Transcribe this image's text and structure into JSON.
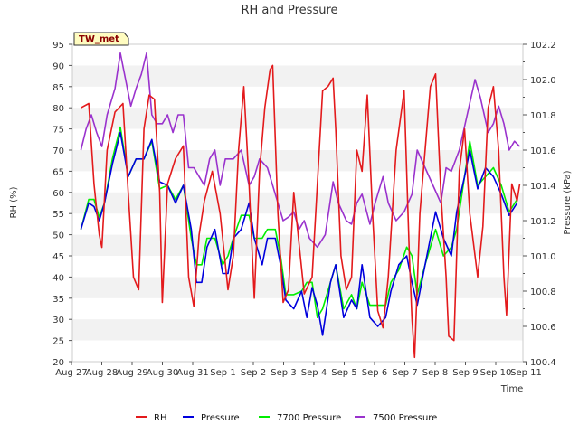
{
  "chart_data": {
    "type": "line",
    "title": "RH and Pressure",
    "xlabel": "Time",
    "ylabel_left": "RH (%)",
    "ylabel_right": "Pressure (kPa)",
    "station_badge": "TW_met",
    "x_ticks": [
      "Aug 27",
      "Aug 28",
      "Aug 29",
      "Aug 30",
      "Aug 31",
      "Sep 1",
      "Sep 2",
      "Sep 3",
      "Sep 4",
      "Sep 5",
      "Sep 6",
      "Sep 7",
      "Sep 8",
      "Sep 9",
      "Sep 10",
      "Sep 11"
    ],
    "x_range_days": [
      0,
      15
    ],
    "y_left_ticks": [
      "20",
      "25",
      "30",
      "35",
      "40",
      "45",
      "50",
      "55",
      "60",
      "65",
      "70",
      "75",
      "80",
      "85",
      "90",
      "95"
    ],
    "y_left_range": [
      20,
      95
    ],
    "y_right_ticks": [
      "100.4",
      "100.6",
      "100.8",
      "101.0",
      "101.2",
      "101.4",
      "101.6",
      "101.8",
      "102.0",
      "102.2"
    ],
    "y_right_range": [
      100.4,
      102.2
    ],
    "grid": "horizontal bands",
    "legend_position": "bottom",
    "series": [
      {
        "name": "RH",
        "axis": "left",
        "color": "#e31a1c",
        "points": [
          [
            0.3,
            80
          ],
          [
            0.6,
            81
          ],
          [
            0.8,
            62
          ],
          [
            1.0,
            50
          ],
          [
            1.1,
            47
          ],
          [
            1.3,
            70
          ],
          [
            1.6,
            79
          ],
          [
            1.9,
            81
          ],
          [
            2.1,
            60
          ],
          [
            2.3,
            40
          ],
          [
            2.5,
            37
          ],
          [
            2.7,
            75
          ],
          [
            2.9,
            83
          ],
          [
            3.1,
            82
          ],
          [
            3.3,
            60
          ],
          [
            3.4,
            34
          ],
          [
            3.6,
            62
          ],
          [
            3.9,
            68
          ],
          [
            4.2,
            71
          ],
          [
            4.4,
            40
          ],
          [
            4.6,
            33
          ],
          [
            4.8,
            50
          ],
          [
            5.0,
            58
          ],
          [
            5.3,
            65
          ],
          [
            5.6,
            55
          ],
          [
            5.9,
            37
          ],
          [
            6.1,
            45
          ],
          [
            6.3,
            70
          ],
          [
            6.5,
            85
          ],
          [
            6.7,
            62
          ],
          [
            6.9,
            35
          ],
          [
            7.1,
            65
          ],
          [
            7.3,
            80
          ],
          [
            7.5,
            89
          ],
          [
            7.6,
            90
          ],
          [
            7.8,
            55
          ],
          [
            8.0,
            34
          ],
          [
            8.2,
            37
          ],
          [
            8.4,
            60
          ],
          [
            8.6,
            48
          ],
          [
            8.8,
            36
          ],
          [
            9.1,
            40
          ],
          [
            9.3,
            62
          ],
          [
            9.5,
            84
          ],
          [
            9.7,
            85
          ],
          [
            9.9,
            87
          ],
          [
            10.0,
            75
          ],
          [
            10.2,
            45
          ],
          [
            10.4,
            37
          ],
          [
            10.6,
            40
          ],
          [
            10.8,
            70
          ],
          [
            11.0,
            65
          ],
          [
            11.2,
            83
          ],
          [
            11.4,
            55
          ],
          [
            11.6,
            32
          ],
          [
            11.8,
            28
          ],
          [
            12.0,
            40
          ],
          [
            12.3,
            70
          ],
          [
            12.6,
            84
          ],
          [
            12.8,
            45
          ],
          [
            12.9,
            30
          ],
          [
            13.0,
            21
          ],
          [
            13.2,
            55
          ],
          [
            13.4,
            70
          ],
          [
            13.6,
            85
          ],
          [
            13.8,
            88
          ],
          [
            14.0,
            60
          ],
          [
            14.2,
            40
          ],
          [
            14.3,
            26
          ],
          [
            14.5,
            25
          ],
          [
            14.7,
            65
          ],
          [
            14.9,
            75
          ],
          [
            15.1,
            55
          ],
          [
            15.4,
            40
          ],
          [
            15.6,
            52
          ],
          [
            15.8,
            80
          ],
          [
            16.0,
            85
          ],
          [
            16.2,
            70
          ],
          [
            16.4,
            40
          ],
          [
            16.5,
            31
          ],
          [
            16.7,
            62
          ],
          [
            16.9,
            58
          ],
          [
            17.0,
            62
          ]
        ]
      },
      {
        "name": "Pressure",
        "axis": "right",
        "color": "#0000dd",
        "points": [
          [
            0.3,
            101.15
          ],
          [
            0.6,
            101.3
          ],
          [
            0.8,
            101.28
          ],
          [
            1.0,
            101.2
          ],
          [
            1.2,
            101.3
          ],
          [
            1.5,
            101.52
          ],
          [
            1.8,
            101.7
          ],
          [
            2.1,
            101.45
          ],
          [
            2.4,
            101.55
          ],
          [
            2.7,
            101.55
          ],
          [
            3.0,
            101.66
          ],
          [
            3.3,
            101.42
          ],
          [
            3.6,
            101.4
          ],
          [
            3.9,
            101.3
          ],
          [
            4.2,
            101.4
          ],
          [
            4.5,
            101.15
          ],
          [
            4.7,
            100.85
          ],
          [
            4.9,
            100.85
          ],
          [
            5.1,
            101.05
          ],
          [
            5.4,
            101.15
          ],
          [
            5.7,
            100.9
          ],
          [
            5.9,
            100.9
          ],
          [
            6.1,
            101.1
          ],
          [
            6.4,
            101.15
          ],
          [
            6.7,
            101.3
          ],
          [
            6.9,
            101.1
          ],
          [
            7.2,
            100.95
          ],
          [
            7.4,
            101.1
          ],
          [
            7.7,
            101.1
          ],
          [
            7.9,
            100.95
          ],
          [
            8.1,
            100.75
          ],
          [
            8.4,
            100.7
          ],
          [
            8.7,
            100.8
          ],
          [
            8.9,
            100.65
          ],
          [
            9.1,
            100.82
          ],
          [
            9.3,
            100.72
          ],
          [
            9.5,
            100.55
          ],
          [
            9.8,
            100.85
          ],
          [
            10.0,
            100.95
          ],
          [
            10.3,
            100.65
          ],
          [
            10.6,
            100.75
          ],
          [
            10.8,
            100.7
          ],
          [
            11.0,
            100.95
          ],
          [
            11.3,
            100.65
          ],
          [
            11.6,
            100.6
          ],
          [
            11.9,
            100.65
          ],
          [
            12.1,
            100.8
          ],
          [
            12.4,
            100.95
          ],
          [
            12.7,
            101.0
          ],
          [
            12.9,
            100.85
          ],
          [
            13.1,
            100.72
          ],
          [
            13.4,
            100.95
          ],
          [
            13.8,
            101.25
          ],
          [
            14.1,
            101.1
          ],
          [
            14.4,
            101.0
          ],
          [
            14.6,
            101.25
          ],
          [
            14.9,
            101.45
          ],
          [
            15.1,
            101.6
          ],
          [
            15.4,
            101.38
          ],
          [
            15.7,
            101.5
          ],
          [
            16.0,
            101.45
          ],
          [
            16.3,
            101.35
          ],
          [
            16.6,
            101.23
          ],
          [
            16.9,
            101.3
          ]
        ]
      },
      {
        "name": "7700 Pressure",
        "axis": "right",
        "color": "#00ee00",
        "points": [
          [
            0.3,
            101.15
          ],
          [
            0.6,
            101.32
          ],
          [
            0.8,
            101.32
          ],
          [
            1.0,
            101.22
          ],
          [
            1.2,
            101.3
          ],
          [
            1.5,
            101.55
          ],
          [
            1.8,
            101.73
          ],
          [
            2.1,
            101.45
          ],
          [
            2.4,
            101.55
          ],
          [
            2.7,
            101.55
          ],
          [
            3.0,
            101.65
          ],
          [
            3.3,
            101.38
          ],
          [
            3.6,
            101.4
          ],
          [
            3.9,
            101.32
          ],
          [
            4.2,
            101.4
          ],
          [
            4.5,
            101.1
          ],
          [
            4.7,
            100.95
          ],
          [
            4.9,
            100.95
          ],
          [
            5.1,
            101.1
          ],
          [
            5.4,
            101.1
          ],
          [
            5.7,
            100.95
          ],
          [
            5.9,
            101.0
          ],
          [
            6.1,
            101.1
          ],
          [
            6.4,
            101.23
          ],
          [
            6.7,
            101.23
          ],
          [
            6.9,
            101.1
          ],
          [
            7.2,
            101.1
          ],
          [
            7.4,
            101.15
          ],
          [
            7.7,
            101.15
          ],
          [
            7.9,
            101.0
          ],
          [
            8.1,
            100.78
          ],
          [
            8.4,
            100.78
          ],
          [
            8.7,
            100.8
          ],
          [
            8.9,
            100.85
          ],
          [
            9.1,
            100.85
          ],
          [
            9.3,
            100.65
          ],
          [
            9.5,
            100.7
          ],
          [
            9.8,
            100.85
          ],
          [
            10.0,
            100.95
          ],
          [
            10.3,
            100.7
          ],
          [
            10.6,
            100.78
          ],
          [
            10.8,
            100.7
          ],
          [
            11.0,
            100.85
          ],
          [
            11.3,
            100.72
          ],
          [
            11.6,
            100.72
          ],
          [
            11.9,
            100.72
          ],
          [
            12.1,
            100.85
          ],
          [
            12.4,
            100.92
          ],
          [
            12.7,
            101.05
          ],
          [
            12.9,
            101.0
          ],
          [
            13.1,
            100.78
          ],
          [
            13.4,
            100.95
          ],
          [
            13.8,
            101.15
          ],
          [
            14.1,
            101.0
          ],
          [
            14.4,
            101.05
          ],
          [
            14.6,
            101.15
          ],
          [
            14.9,
            101.45
          ],
          [
            15.1,
            101.65
          ],
          [
            15.4,
            101.4
          ],
          [
            15.7,
            101.45
          ],
          [
            16.0,
            101.5
          ],
          [
            16.3,
            101.4
          ],
          [
            16.6,
            101.25
          ],
          [
            16.9,
            101.32
          ]
        ]
      },
      {
        "name": "7500 Pressure",
        "axis": "right",
        "color": "#9a32cd",
        "points": [
          [
            0.3,
            101.6
          ],
          [
            0.5,
            101.72
          ],
          [
            0.7,
            101.8
          ],
          [
            0.9,
            101.7
          ],
          [
            1.1,
            101.62
          ],
          [
            1.3,
            101.8
          ],
          [
            1.6,
            101.95
          ],
          [
            1.8,
            102.15
          ],
          [
            2.0,
            102.0
          ],
          [
            2.2,
            101.85
          ],
          [
            2.4,
            101.95
          ],
          [
            2.6,
            102.03
          ],
          [
            2.8,
            102.15
          ],
          [
            3.0,
            101.8
          ],
          [
            3.2,
            101.75
          ],
          [
            3.4,
            101.75
          ],
          [
            3.6,
            101.8
          ],
          [
            3.8,
            101.7
          ],
          [
            4.0,
            101.8
          ],
          [
            4.2,
            101.8
          ],
          [
            4.4,
            101.5
          ],
          [
            4.6,
            101.5
          ],
          [
            4.8,
            101.45
          ],
          [
            5.0,
            101.4
          ],
          [
            5.2,
            101.55
          ],
          [
            5.4,
            101.6
          ],
          [
            5.6,
            101.4
          ],
          [
            5.8,
            101.55
          ],
          [
            6.1,
            101.55
          ],
          [
            6.4,
            101.6
          ],
          [
            6.7,
            101.4
          ],
          [
            6.9,
            101.45
          ],
          [
            7.1,
            101.55
          ],
          [
            7.4,
            101.5
          ],
          [
            7.7,
            101.35
          ],
          [
            8.0,
            101.2
          ],
          [
            8.2,
            101.22
          ],
          [
            8.4,
            101.25
          ],
          [
            8.6,
            101.15
          ],
          [
            8.8,
            101.2
          ],
          [
            9.0,
            101.1
          ],
          [
            9.3,
            101.05
          ],
          [
            9.6,
            101.12
          ],
          [
            9.9,
            101.42
          ],
          [
            10.1,
            101.3
          ],
          [
            10.4,
            101.2
          ],
          [
            10.6,
            101.18
          ],
          [
            10.8,
            101.3
          ],
          [
            11.0,
            101.35
          ],
          [
            11.3,
            101.18
          ],
          [
            11.5,
            101.3
          ],
          [
            11.8,
            101.45
          ],
          [
            12.0,
            101.3
          ],
          [
            12.3,
            101.2
          ],
          [
            12.6,
            101.25
          ],
          [
            12.9,
            101.35
          ],
          [
            13.1,
            101.6
          ],
          [
            13.4,
            101.5
          ],
          [
            13.7,
            101.4
          ],
          [
            14.0,
            101.3
          ],
          [
            14.2,
            101.5
          ],
          [
            14.4,
            101.48
          ],
          [
            14.7,
            101.6
          ],
          [
            15.0,
            101.8
          ],
          [
            15.3,
            102.0
          ],
          [
            15.5,
            101.9
          ],
          [
            15.8,
            101.7
          ],
          [
            16.0,
            101.75
          ],
          [
            16.2,
            101.85
          ],
          [
            16.4,
            101.75
          ],
          [
            16.6,
            101.6
          ],
          [
            16.8,
            101.65
          ],
          [
            17.0,
            101.62
          ]
        ]
      }
    ]
  }
}
